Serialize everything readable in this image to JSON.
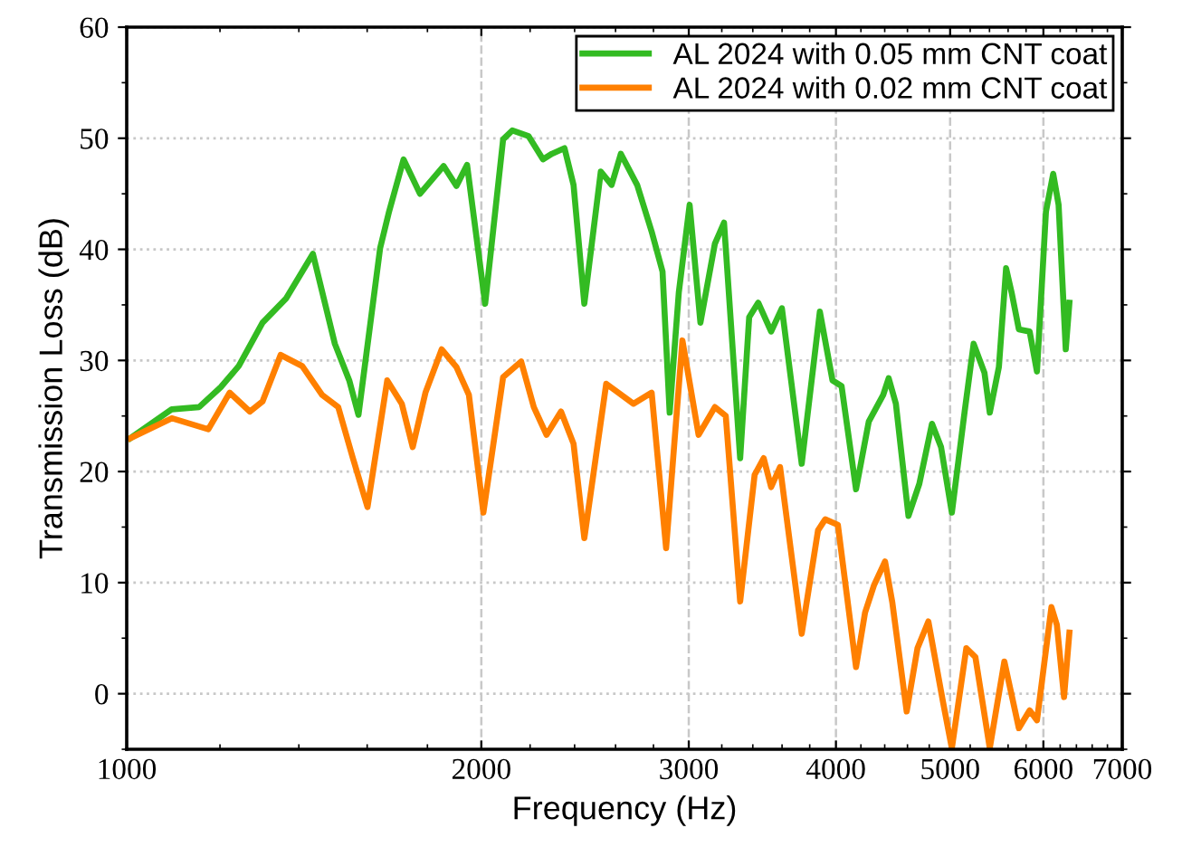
{
  "chart_data": {
    "type": "line",
    "xlabel": "Frequency (Hz)",
    "ylabel": "Transmission Loss (dB)",
    "log": "x",
    "xlim": [
      1000,
      7000
    ],
    "xticks": [
      1000,
      2000,
      3000,
      4000,
      5000,
      6000,
      7000
    ],
    "ylim": [
      -5,
      60
    ],
    "yticks": [
      0,
      10,
      20,
      30,
      40,
      50,
      60
    ],
    "grid": true,
    "legend": "top right",
    "line_style": "solid",
    "marker": "none",
    "series": [
      {
        "name": "AL 2024 with 0.05 mm CNT coat",
        "color": "#33bb22",
        "x": [
          1007,
          1092,
          1152,
          1202,
          1245,
          1304,
          1366,
          1439,
          1502,
          1545,
          1573,
          1641,
          1670,
          1718,
          1774,
          1858,
          1905,
          1945,
          2015,
          2087,
          2125,
          2193,
          2256,
          2296,
          2353,
          2395,
          2446,
          2526,
          2580,
          2627,
          2712,
          2790,
          2850,
          2890,
          2942,
          3005,
          3069,
          3157,
          3214,
          3317,
          3376,
          3436,
          3524,
          3599,
          3741,
          3876,
          3973,
          4044,
          4160,
          4265,
          4387,
          4434,
          4497,
          4609,
          4708,
          4826,
          4912,
          5017,
          5144,
          5235,
          5347,
          5403,
          5500,
          5578,
          5639,
          5719,
          5841,
          5925,
          6030,
          6116,
          6181,
          6268,
          6313
        ],
        "values": [
          23.0,
          25.6,
          25.8,
          27.6,
          29.5,
          33.4,
          35.6,
          39.6,
          31.5,
          28.2,
          25.1,
          40.1,
          43.4,
          48.1,
          45.0,
          47.5,
          45.7,
          47.6,
          35.1,
          49.9,
          50.7,
          50.2,
          48.1,
          48.6,
          49.1,
          45.8,
          35.1,
          47.0,
          45.8,
          48.6,
          45.8,
          41.6,
          38.0,
          25.3,
          36.1,
          44.0,
          33.4,
          40.5,
          42.4,
          21.2,
          33.9,
          35.2,
          32.6,
          34.7,
          20.7,
          34.4,
          28.2,
          27.7,
          18.4,
          24.5,
          26.9,
          28.4,
          26.1,
          16.0,
          18.9,
          24.3,
          22.2,
          16.3,
          25.4,
          31.5,
          28.9,
          25.3,
          29.4,
          38.3,
          36.1,
          32.8,
          32.6,
          29.0,
          43.4,
          46.8,
          44.0,
          31.0,
          35.2
        ]
      },
      {
        "name": "AL 2024 with 0.02 mm CNT coat",
        "color": "#ff8000",
        "x": [
          1007,
          1092,
          1173,
          1223,
          1272,
          1304,
          1351,
          1409,
          1465,
          1512,
          1556,
          1601,
          1664,
          1712,
          1749,
          1793,
          1851,
          1905,
          1952,
          2008,
          2087,
          2162,
          2216,
          2272,
          2337,
          2395,
          2446,
          2553,
          2693,
          2790,
          2870,
          2963,
          3058,
          3157,
          3225,
          3317,
          3412,
          3473,
          3524,
          3586,
          3741,
          3862,
          3917,
          4015,
          4160,
          4234,
          4310,
          4403,
          4466,
          4593,
          4691,
          4792,
          4930,
          5017,
          5161,
          5253,
          5403,
          5559,
          5719,
          5841,
          5925,
          6095,
          6160,
          6247,
          6313
        ],
        "values": [
          23.0,
          24.8,
          23.8,
          27.1,
          25.4,
          26.3,
          30.5,
          29.5,
          26.9,
          25.8,
          21.2,
          16.8,
          28.2,
          26.1,
          22.2,
          27.1,
          31.0,
          29.4,
          26.9,
          16.3,
          28.5,
          29.9,
          25.8,
          23.3,
          25.4,
          22.5,
          14.0,
          27.9,
          26.1,
          27.1,
          13.1,
          31.8,
          23.3,
          25.8,
          25.0,
          8.3,
          19.7,
          21.2,
          18.6,
          20.4,
          5.4,
          14.7,
          15.7,
          15.2,
          2.4,
          7.3,
          9.8,
          11.9,
          8.2,
          -1.6,
          4.1,
          6.5,
          -0.7,
          -4.9,
          4.1,
          3.3,
          -4.9,
          2.9,
          -3.1,
          -1.5,
          -2.4,
          7.8,
          6.2,
          -0.3,
          5.5
        ]
      }
    ]
  }
}
